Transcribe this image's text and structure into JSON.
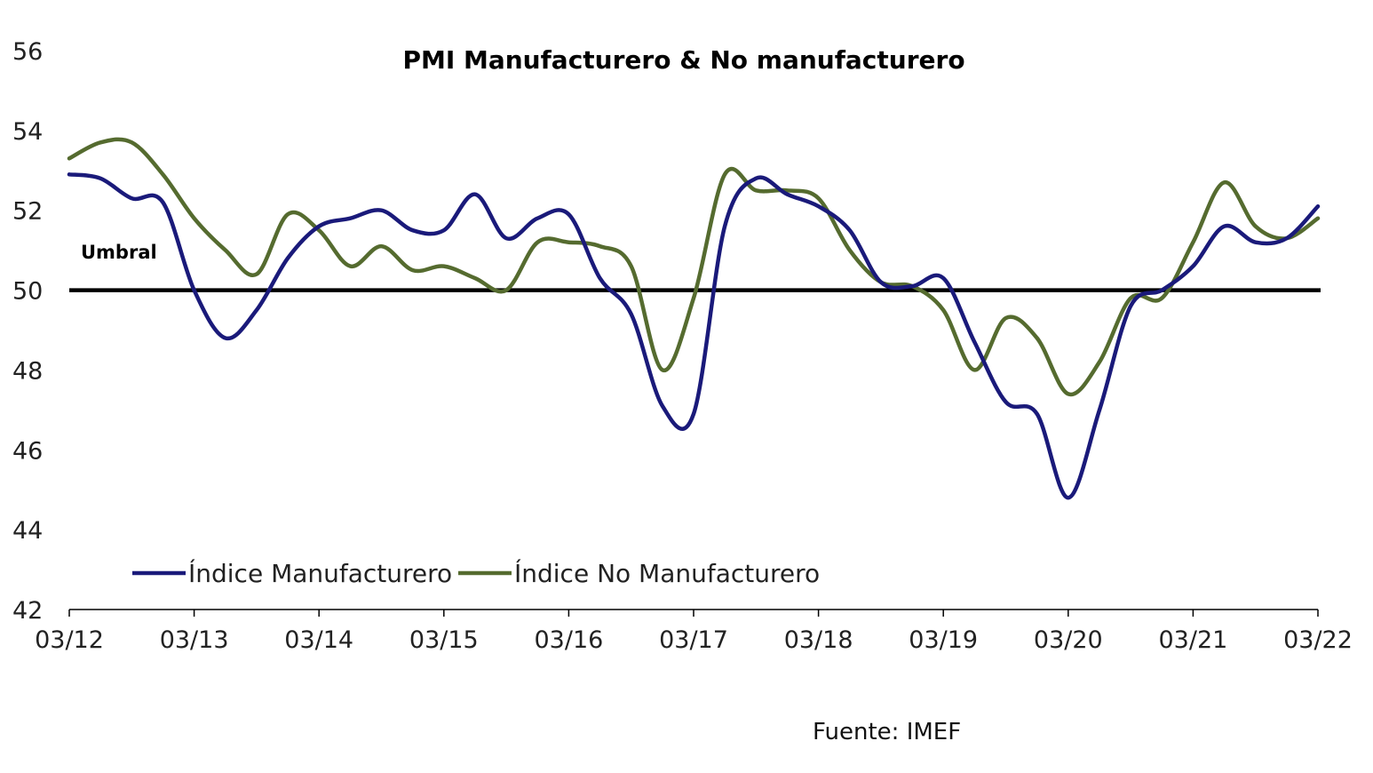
{
  "chart_data": {
    "type": "line",
    "title": "PMI Manufacturero & No manufacturero",
    "xlabel": "",
    "ylabel": "",
    "ylim": [
      42,
      56
    ],
    "yticks": [
      "42",
      "44",
      "46",
      "48",
      "50",
      "52",
      "54",
      "56"
    ],
    "xticks": [
      "03/12",
      "03/13",
      "03/14",
      "03/15",
      "03/16",
      "03/17",
      "03/18",
      "03/19",
      "03/20",
      "03/21",
      "03/22"
    ],
    "xlim": [
      "03/12",
      "03/22"
    ],
    "legend_position": "bottom-left",
    "grid": false,
    "threshold": {
      "value": 50,
      "label": "Umbral",
      "color": "#000000"
    },
    "source": "Fuente: IMEF",
    "series": [
      {
        "name": "Índice Manufacturero",
        "color": "#1a1a7a",
        "points": [
          [
            "03/12",
            52.9
          ],
          [
            "06/12",
            52.8
          ],
          [
            "09/12",
            52.3
          ],
          [
            "12/12",
            52.2
          ],
          [
            "03/13",
            50.0
          ],
          [
            "06/13",
            48.8
          ],
          [
            "09/13",
            49.5
          ],
          [
            "12/13",
            50.8
          ],
          [
            "03/14",
            51.6
          ],
          [
            "06/14",
            51.8
          ],
          [
            "09/14",
            52.0
          ],
          [
            "12/14",
            51.5
          ],
          [
            "03/15",
            51.5
          ],
          [
            "06/15",
            52.4
          ],
          [
            "09/15",
            51.3
          ],
          [
            "12/15",
            51.8
          ],
          [
            "03/16",
            51.9
          ],
          [
            "06/16",
            50.3
          ],
          [
            "09/16",
            49.4
          ],
          [
            "12/16",
            47.1
          ],
          [
            "03/17",
            46.9
          ],
          [
            "06/17",
            51.6
          ],
          [
            "09/17",
            52.8
          ],
          [
            "12/17",
            52.4
          ],
          [
            "03/18",
            52.1
          ],
          [
            "06/18",
            51.5
          ],
          [
            "09/18",
            50.2
          ],
          [
            "12/18",
            50.1
          ],
          [
            "03/19",
            50.3
          ],
          [
            "06/19",
            48.7
          ],
          [
            "09/19",
            47.2
          ],
          [
            "12/19",
            46.9
          ],
          [
            "03/20",
            44.8
          ],
          [
            "06/20",
            47.0
          ],
          [
            "09/20",
            49.6
          ],
          [
            "12/20",
            50.0
          ],
          [
            "03/21",
            50.6
          ],
          [
            "06/21",
            51.6
          ],
          [
            "09/21",
            51.2
          ],
          [
            "12/21",
            51.3
          ],
          [
            "03/22",
            52.1
          ]
        ]
      },
      {
        "name": "Índice No Manufacturero",
        "color": "#556b2f",
        "points": [
          [
            "03/12",
            53.3
          ],
          [
            "06/12",
            53.7
          ],
          [
            "09/12",
            53.7
          ],
          [
            "12/12",
            52.9
          ],
          [
            "03/13",
            51.8
          ],
          [
            "06/13",
            51.0
          ],
          [
            "09/13",
            50.4
          ],
          [
            "12/13",
            51.9
          ],
          [
            "03/14",
            51.5
          ],
          [
            "06/14",
            50.6
          ],
          [
            "09/14",
            51.1
          ],
          [
            "12/14",
            50.5
          ],
          [
            "03/15",
            50.6
          ],
          [
            "06/15",
            50.3
          ],
          [
            "09/15",
            50.0
          ],
          [
            "12/15",
            51.2
          ],
          [
            "03/16",
            51.2
          ],
          [
            "06/16",
            51.1
          ],
          [
            "09/16",
            50.6
          ],
          [
            "12/16",
            48.0
          ],
          [
            "03/17",
            49.8
          ],
          [
            "06/17",
            52.9
          ],
          [
            "09/17",
            52.5
          ],
          [
            "12/17",
            52.5
          ],
          [
            "03/18",
            52.3
          ],
          [
            "06/18",
            51.0
          ],
          [
            "09/18",
            50.2
          ],
          [
            "12/18",
            50.1
          ],
          [
            "03/19",
            49.5
          ],
          [
            "06/19",
            48.0
          ],
          [
            "09/19",
            49.3
          ],
          [
            "12/19",
            48.8
          ],
          [
            "03/20",
            47.4
          ],
          [
            "06/20",
            48.2
          ],
          [
            "09/20",
            49.8
          ],
          [
            "12/20",
            49.8
          ],
          [
            "03/21",
            51.2
          ],
          [
            "06/21",
            52.7
          ],
          [
            "09/21",
            51.6
          ],
          [
            "12/21",
            51.3
          ],
          [
            "03/22",
            51.8
          ]
        ]
      }
    ]
  }
}
